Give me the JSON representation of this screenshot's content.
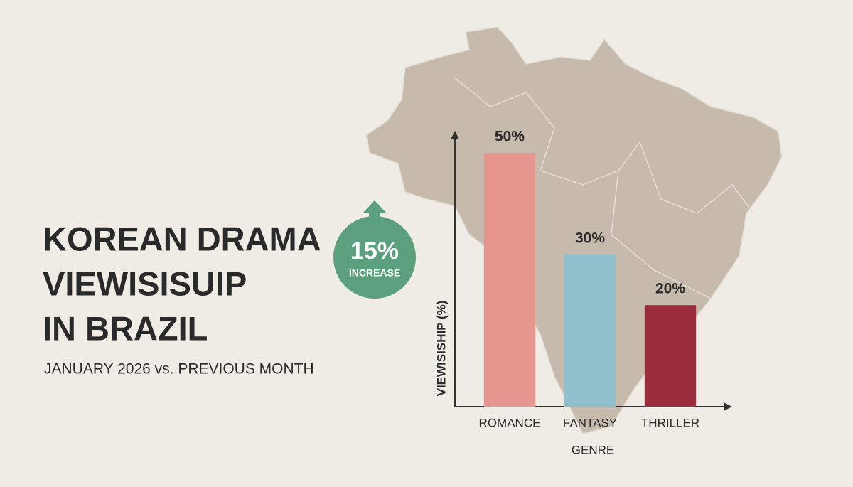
{
  "chart_data": {
    "type": "bar",
    "title": [
      "KOREAN DRAMA",
      "VIEWISISUIP",
      "IN BRAZIL"
    ],
    "subtitle": "JANUARY 2026 vs. PREVIOUS MONTH",
    "annotation": {
      "text": "15%",
      "caption": "INCREASE"
    },
    "categories": [
      "ROMANCE",
      "FANTASY",
      "THRILLER"
    ],
    "values": [
      50,
      30,
      20
    ],
    "value_labels": [
      "50%",
      "30%",
      "20%"
    ],
    "colors": [
      "#e6968f",
      "#90c0cb",
      "#9b2c3b"
    ],
    "x_label": "GENRE",
    "y_label": "VIEWISISHIP (%)",
    "ylim": [
      0,
      53.5
    ]
  }
}
